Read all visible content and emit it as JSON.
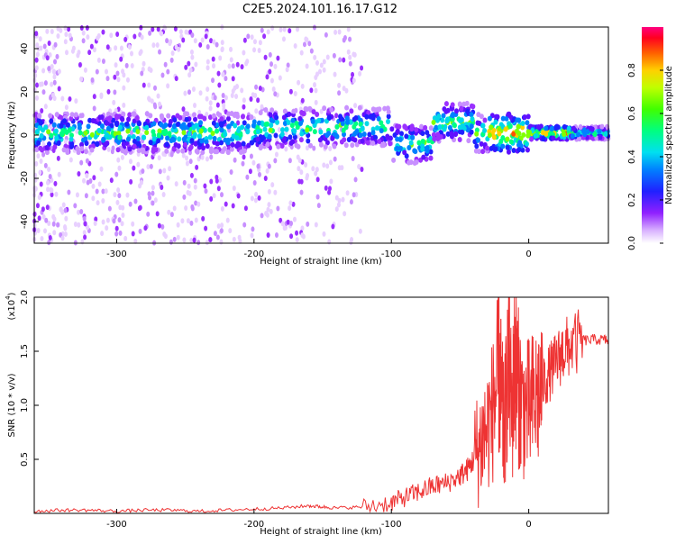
{
  "title": "C2E5.2024.101.16.17.G12",
  "chart_data": [
    {
      "type": "heatmap",
      "xlabel": "Height of straight line (km)",
      "ylabel": "Frequency (Hz)",
      "x_ticks": [
        -300,
        -200,
        -100,
        0
      ],
      "y_ticks": [
        -40,
        -20,
        0,
        20,
        40
      ],
      "xlim": [
        -360,
        58
      ],
      "ylim": [
        -50,
        50
      ],
      "colorbar": {
        "label": "Normalized spectral amplitude",
        "ticks": [
          "0.0",
          "0.2",
          "0.4",
          "0.6",
          "0.8"
        ],
        "range": [
          0,
          1
        ]
      }
    },
    {
      "type": "line",
      "xlabel": "Height of straight line (km)",
      "ylabel": "SNR (10 * v/v)",
      "y_multiplier": "(x10",
      "y_multiplier_exp": "4",
      "y_multiplier_close": ")",
      "x_ticks": [
        -300,
        -200,
        -100,
        0
      ],
      "y_ticks": [
        "0.5",
        "1.0",
        "1.5",
        "2.0"
      ],
      "xlim": [
        -360,
        58
      ],
      "ylim": [
        0,
        2.0
      ],
      "color": "#ee3333",
      "series": [
        {
          "x": [
            -360,
            -340,
            -320,
            -300,
            -280,
            -260,
            -240,
            -220,
            -200,
            -180,
            -160,
            -150,
            -140,
            -120,
            -100,
            -90,
            -80,
            -70,
            -60,
            -50,
            -45,
            -40,
            -35,
            -30,
            -25,
            -22,
            -20,
            -18,
            -15,
            -12,
            -10,
            -8,
            -5,
            0,
            5,
            10,
            15,
            20,
            25,
            30,
            40,
            50,
            58
          ],
          "values": [
            0.02,
            0.03,
            0.03,
            0.02,
            0.03,
            0.03,
            0.02,
            0.03,
            0.04,
            0.05,
            0.07,
            0.06,
            0.05,
            0.06,
            0.1,
            0.15,
            0.2,
            0.25,
            0.28,
            0.35,
            0.4,
            0.5,
            0.65,
            0.8,
            1.0,
            1.3,
            1.1,
            0.7,
            1.4,
            0.9,
            1.5,
            1.2,
            1.0,
            0.95,
            1.05,
            1.2,
            1.3,
            1.4,
            1.5,
            1.55,
            1.6,
            1.61,
            1.6
          ]
        }
      ]
    }
  ]
}
